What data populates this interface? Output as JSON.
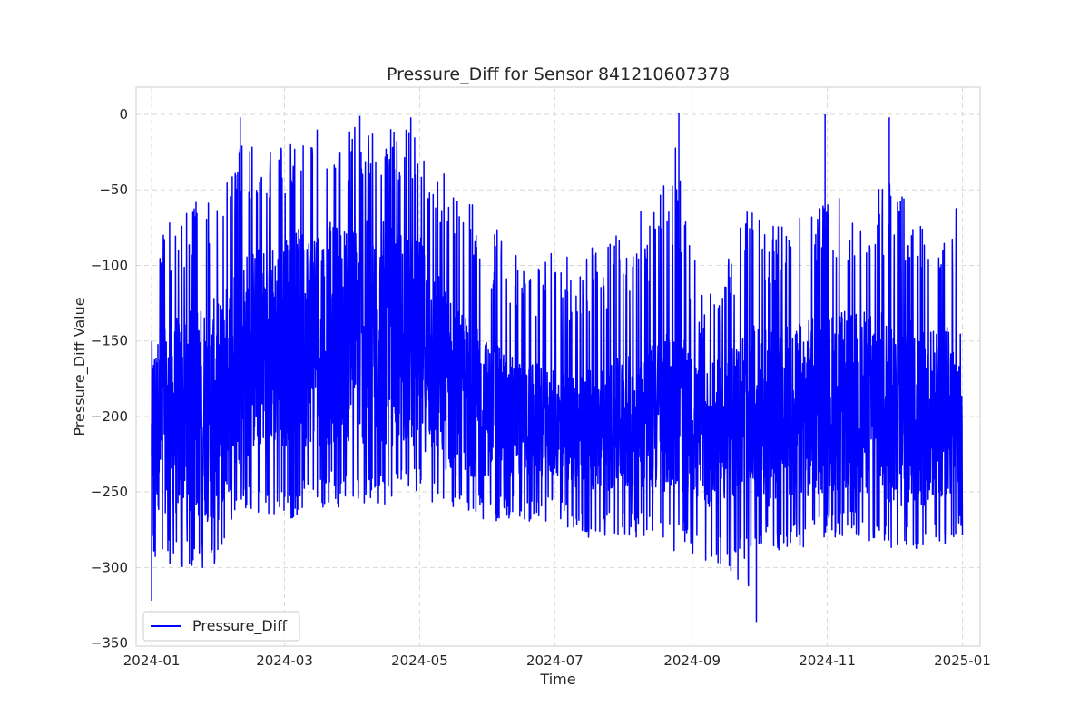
{
  "chart_data": {
    "type": "line",
    "title": "Pressure_Diff for Sensor 841210607378",
    "xlabel": "Time",
    "ylabel": "Pressure_Diff Value",
    "xlim": [
      "2023-12-25",
      "2025-01-09"
    ],
    "ylim": [
      -352,
      18
    ],
    "x_ticks": [
      "2024-01",
      "2024-03",
      "2024-05",
      "2024-07",
      "2024-09",
      "2024-11",
      "2025-01"
    ],
    "y_ticks": [
      0,
      -50,
      -100,
      -150,
      -200,
      -250,
      -300,
      -350
    ],
    "grid": true,
    "legend_position": "lower-left",
    "series": [
      {
        "name": "Pressure_Diff",
        "color": "#0000ff",
        "envelope": {
          "dates": [
            "2024-01-01",
            "2024-01-15",
            "2024-02-01",
            "2024-02-10",
            "2024-03-01",
            "2024-03-15",
            "2024-04-01",
            "2024-04-15",
            "2024-05-01",
            "2024-05-15",
            "2024-06-01",
            "2024-06-15",
            "2024-07-01",
            "2024-07-15",
            "2024-08-01",
            "2024-08-15",
            "2024-08-25",
            "2024-09-05",
            "2024-09-15",
            "2024-09-25",
            "2024-10-01",
            "2024-10-15",
            "2024-11-01",
            "2024-11-15",
            "2024-12-01",
            "2024-12-15",
            "2025-01-01"
          ],
          "upper": [
            -75,
            -60,
            -50,
            -20,
            -20,
            -10,
            -5,
            -10,
            -10,
            -40,
            -70,
            -90,
            -90,
            -90,
            -70,
            -60,
            -20,
            -120,
            -100,
            -60,
            -70,
            -70,
            -50,
            -50,
            -40,
            -70,
            -60
          ],
          "lower": [
            -300,
            -300,
            -300,
            -260,
            -270,
            -260,
            -260,
            -260,
            -250,
            -270,
            -270,
            -270,
            -270,
            -280,
            -280,
            -280,
            -290,
            -300,
            -300,
            -320,
            -290,
            -290,
            -280,
            -280,
            -290,
            -290,
            -280
          ],
          "typical_high": [
            -150,
            -130,
            -120,
            -90,
            -80,
            -70,
            -70,
            -70,
            -80,
            -120,
            -150,
            -160,
            -170,
            -170,
            -160,
            -150,
            -140,
            -170,
            -160,
            -140,
            -140,
            -140,
            -130,
            -130,
            -130,
            -140,
            -140
          ],
          "typical_low": [
            -260,
            -270,
            -270,
            -230,
            -220,
            -220,
            -220,
            -220,
            -220,
            -240,
            -240,
            -240,
            -240,
            -250,
            -250,
            -250,
            -250,
            -260,
            -260,
            -250,
            -260,
            -260,
            -250,
            -250,
            -260,
            -260,
            -250
          ]
        },
        "spikes": [
          {
            "date": "2024-01-01",
            "value": -322
          },
          {
            "date": "2024-02-10",
            "value": -2
          },
          {
            "date": "2024-04-04",
            "value": -1
          },
          {
            "date": "2024-04-27",
            "value": -2
          },
          {
            "date": "2024-08-26",
            "value": 1
          },
          {
            "date": "2024-09-30",
            "value": -336
          },
          {
            "date": "2024-10-31",
            "value": 0
          },
          {
            "date": "2024-11-29",
            "value": -2
          }
        ]
      }
    ]
  }
}
